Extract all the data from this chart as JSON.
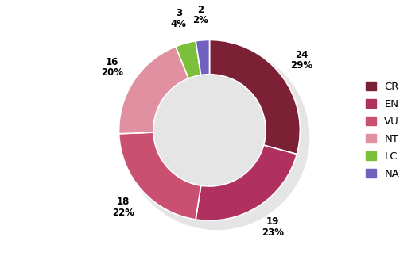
{
  "labels": [
    "CR",
    "EN",
    "VU",
    "NT",
    "LC",
    "NA"
  ],
  "values": [
    24,
    19,
    18,
    16,
    3,
    2
  ],
  "colors": [
    "#7b2035",
    "#b03060",
    "#c95070",
    "#e090a0",
    "#7cbf3a",
    "#7060c0"
  ],
  "wedge_label_nums": [
    "24",
    "19",
    "18",
    "16",
    "3",
    "2"
  ],
  "wedge_label_pcts": [
    "29%",
    "23%",
    "22%",
    "20%",
    "4%",
    "2%"
  ],
  "figsize": [
    5.27,
    3.28
  ],
  "dpi": 100,
  "donut_width": 0.38,
  "background_color": "#ffffff"
}
